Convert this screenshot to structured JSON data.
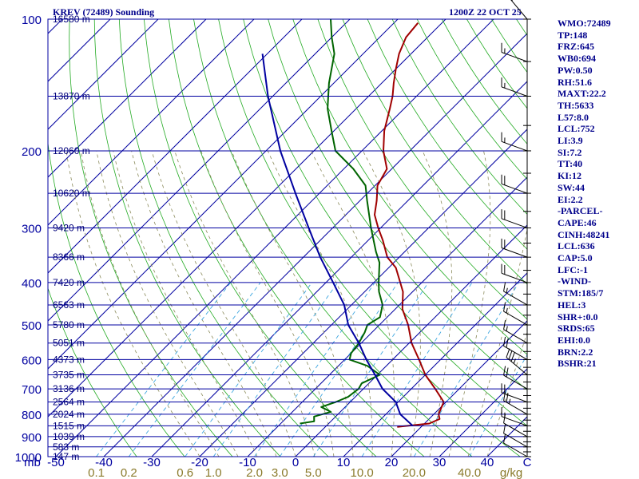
{
  "header": {
    "left": "KREV (72489) Sounding",
    "right": "1200Z 22 OCT 25"
  },
  "stats": [
    "WMO:72489",
    "TP:148",
    "FRZ:645",
    "WB0:694",
    "PW:0.50",
    "RH:51.6",
    "MAXT:22.2",
    "TH:5633",
    "L57:8.0",
    "LCL:752",
    "LI:3.9",
    "SI:7.2",
    "TT:40",
    "KI:12",
    "SW:44",
    "EI:2.2",
    "-PARCEL-",
    "CAPE:46",
    "CINH:48241",
    "LCL:636",
    "CAP:5.0",
    "LFC:-1",
    "-WIND-",
    "STM:185/7",
    "HEL:3",
    "SHR+:0.0",
    "SRDS:65",
    "EHI:0.0",
    "BRN:2.2",
    "BSHR:21"
  ],
  "chart_data": {
    "type": "line",
    "title": "KREV (72489) Sounding",
    "xlabel": "C",
    "ylabel": "mb",
    "mixing_ratio_unit": "g/kg",
    "xlim": [
      -50,
      50
    ],
    "ylim": [
      1000,
      100
    ],
    "pressure_ticks": [
      {
        "p": 100,
        "label": "100"
      },
      {
        "p": 200,
        "label": "200"
      },
      {
        "p": 300,
        "label": "300"
      },
      {
        "p": 400,
        "label": "400"
      },
      {
        "p": 500,
        "label": "500"
      },
      {
        "p": 600,
        "label": "600"
      },
      {
        "p": 700,
        "label": "700"
      },
      {
        "p": 800,
        "label": "800"
      },
      {
        "p": 900,
        "label": "900"
      },
      {
        "p": 1000,
        "label": "1000"
      }
    ],
    "temperature_ticks": [
      {
        "t": -50,
        "label": "-50"
      },
      {
        "t": -40,
        "label": "-40"
      },
      {
        "t": -30,
        "label": "-30"
      },
      {
        "t": -20,
        "label": "-20"
      },
      {
        "t": -10,
        "label": "-10"
      },
      {
        "t": 0,
        "label": "0"
      },
      {
        "t": 10,
        "label": "10"
      },
      {
        "t": 20,
        "label": "20"
      },
      {
        "t": 30,
        "label": "30"
      },
      {
        "t": 40,
        "label": "40"
      }
    ],
    "mixing_ratio_lines": [
      {
        "w": 0.1,
        "label": "0.1"
      },
      {
        "w": 0.2,
        "label": "0.2"
      },
      {
        "w": 0.6,
        "label": "0.6"
      },
      {
        "w": 1.0,
        "label": "1.0"
      },
      {
        "w": 2.0,
        "label": "2.0"
      },
      {
        "w": 3.0,
        "label": "3.0"
      },
      {
        "w": 5.0,
        "label": "5.0"
      },
      {
        "w": 10.0,
        "label": "10.0"
      },
      {
        "w": 20.0,
        "label": "20.0"
      },
      {
        "w": 40.0,
        "label": "40.0"
      }
    ],
    "height_labels": [
      {
        "p": 100,
        "label": "16580 m"
      },
      {
        "p": 150,
        "label": "13870 m"
      },
      {
        "p": 200,
        "label": "12060 m"
      },
      {
        "p": 250,
        "label": "10620 m"
      },
      {
        "p": 300,
        "label": "9420 m"
      },
      {
        "p": 350,
        "label": "8366 m"
      },
      {
        "p": 400,
        "label": "7420 m"
      },
      {
        "p": 450,
        "label": "6563 m"
      },
      {
        "p": 500,
        "label": "5780 m"
      },
      {
        "p": 550,
        "label": "5051 m"
      },
      {
        "p": 600,
        "label": "4373 m"
      },
      {
        "p": 650,
        "label": "3735 m"
      },
      {
        "p": 700,
        "label": "3136 m"
      },
      {
        "p": 750,
        "label": "2564 m"
      },
      {
        "p": 800,
        "label": "2024 m"
      },
      {
        "p": 850,
        "label": "1515 m"
      },
      {
        "p": 900,
        "label": "1039 m"
      },
      {
        "p": 950,
        "label": "583 m"
      },
      {
        "p": 1000,
        "label": "147 m"
      }
    ],
    "series": [
      {
        "key": "temperature",
        "color": "#a00000",
        "points": [
          [
            855,
            15.0
          ],
          [
            840,
            21.0
          ],
          [
            820,
            22.2
          ],
          [
            800,
            21.0
          ],
          [
            750,
            19.5
          ],
          [
            700,
            15.0
          ],
          [
            650,
            10.0
          ],
          [
            600,
            5.5
          ],
          [
            550,
            0.5
          ],
          [
            500,
            -4.0
          ],
          [
            460,
            -8.5
          ],
          [
            420,
            -12.0
          ],
          [
            400,
            -14.5
          ],
          [
            370,
            -18.5
          ],
          [
            350,
            -22.5
          ],
          [
            320,
            -27.0
          ],
          [
            300,
            -30.5
          ],
          [
            280,
            -34.0
          ],
          [
            260,
            -36.5
          ],
          [
            240,
            -39.5
          ],
          [
            220,
            -41.0
          ],
          [
            200,
            -45.5
          ],
          [
            180,
            -49.5
          ],
          [
            160,
            -53.0
          ],
          [
            150,
            -55.0
          ],
          [
            140,
            -57.5
          ],
          [
            130,
            -60.0
          ],
          [
            120,
            -62.5
          ],
          [
            110,
            -64.5
          ],
          [
            102,
            -65.0
          ]
        ]
      },
      {
        "key": "dewpoint",
        "color": "#006400",
        "points": [
          [
            840,
            -6.0
          ],
          [
            830,
            -3.5
          ],
          [
            810,
            -4.5
          ],
          [
            790,
            -2.0
          ],
          [
            770,
            -5.0
          ],
          [
            750,
            -3.0
          ],
          [
            730,
            -1.5
          ],
          [
            700,
            -1.0
          ],
          [
            680,
            -1.5
          ],
          [
            650,
            0.5
          ],
          [
            620,
            -4.0
          ],
          [
            600,
            -9.0
          ],
          [
            580,
            -10.0
          ],
          [
            550,
            -10.5
          ],
          [
            520,
            -11.5
          ],
          [
            500,
            -12.5
          ],
          [
            480,
            -11.5
          ],
          [
            450,
            -13.5
          ],
          [
            420,
            -17.0
          ],
          [
            400,
            -19.0
          ],
          [
            360,
            -23.0
          ],
          [
            340,
            -26.0
          ],
          [
            300,
            -32.0
          ],
          [
            260,
            -38.5
          ],
          [
            240,
            -42.0
          ],
          [
            220,
            -48.0
          ],
          [
            200,
            -55.5
          ],
          [
            180,
            -60.5
          ],
          [
            160,
            -66.0
          ],
          [
            140,
            -71.0
          ],
          [
            120,
            -76.0
          ],
          [
            110,
            -80.0
          ],
          [
            100,
            -84.0
          ]
        ]
      },
      {
        "key": "parcel",
        "color": "#0000a0",
        "points": [
          [
            850,
            18.0
          ],
          [
            800,
            13.0
          ],
          [
            750,
            9.5
          ],
          [
            700,
            4.0
          ],
          [
            650,
            -0.5
          ],
          [
            600,
            -5.5
          ],
          [
            550,
            -10.5
          ],
          [
            500,
            -16.5
          ],
          [
            450,
            -21.5
          ],
          [
            400,
            -28.5
          ],
          [
            350,
            -36.5
          ],
          [
            300,
            -45.0
          ],
          [
            250,
            -55.0
          ],
          [
            200,
            -67.0
          ],
          [
            150,
            -81.0
          ],
          [
            120,
            -91.0
          ]
        ]
      }
    ],
    "wind_barbs": [
      {
        "p": 1000,
        "dir": 300,
        "spd": 10
      },
      {
        "p": 950,
        "dir": 300,
        "spd": 10
      },
      {
        "p": 900,
        "dir": 300,
        "spd": 10
      },
      {
        "p": 850,
        "dir": 290,
        "spd": 15
      },
      {
        "p": 800,
        "dir": 300,
        "spd": 25
      },
      {
        "p": 750,
        "dir": 290,
        "spd": 20
      },
      {
        "p": 700,
        "dir": 300,
        "spd": 20
      },
      {
        "p": 650,
        "dir": 310,
        "spd": 35
      },
      {
        "p": 600,
        "dir": 300,
        "spd": 20
      },
      {
        "p": 550,
        "dir": 300,
        "spd": 15
      },
      {
        "p": 500,
        "dir": 300,
        "spd": 15
      },
      {
        "p": 450,
        "dir": 300,
        "spd": 15
      },
      {
        "p": 400,
        "dir": 290,
        "spd": 20
      },
      {
        "p": 350,
        "dir": 290,
        "spd": 20
      },
      {
        "p": 300,
        "dir": 290,
        "spd": 20
      },
      {
        "p": 250,
        "dir": 290,
        "spd": 20
      },
      {
        "p": 200,
        "dir": 290,
        "spd": 15
      },
      {
        "p": 150,
        "dir": 290,
        "spd": 15
      },
      {
        "p": 125,
        "dir": 290,
        "spd": 15
      },
      {
        "p": 100,
        "dir": 320,
        "spd": 15
      }
    ]
  }
}
